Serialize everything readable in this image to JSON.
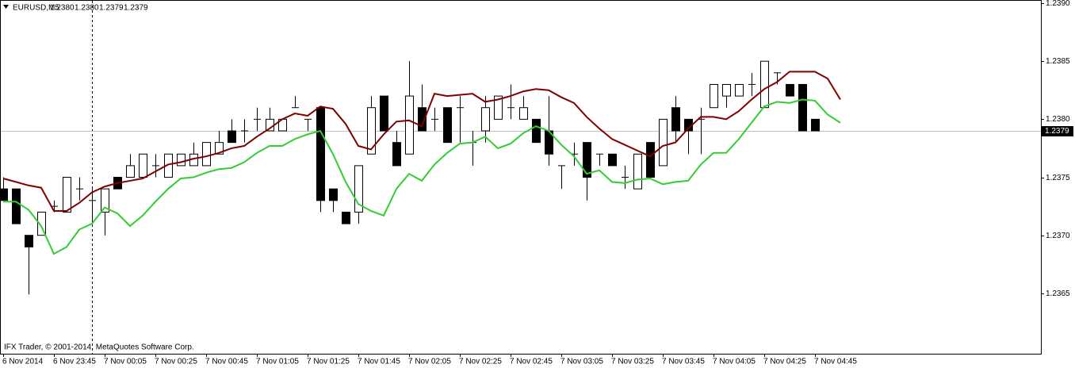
{
  "chart_data": {
    "type": "candlestick",
    "title": "EURUSD,M5",
    "quote": [
      "1.2380",
      "1.2380",
      "1.2379",
      "1.2379"
    ],
    "footer": "IFX Trader, © 2001-2014, MetaQuotes Software Corp.",
    "categories": [
      "6 Nov 2014",
      null,
      null,
      null,
      "6 Nov 23:45",
      null,
      null,
      null,
      "7 Nov 00:05",
      null,
      null,
      null,
      "7 Nov 00:25",
      null,
      null,
      null,
      "7 Nov 00:45",
      null,
      null,
      null,
      "7 Nov 01:05",
      null,
      null,
      null,
      "7 Nov 01:25",
      null,
      null,
      null,
      "7 Nov 01:45",
      null,
      null,
      null,
      "7 Nov 02:05",
      null,
      null,
      null,
      "7 Nov 02:25",
      null,
      null,
      null,
      "7 Nov 02:45",
      null,
      null,
      null,
      "7 Nov 03:05",
      null,
      null,
      null,
      "7 Nov 03:25",
      null,
      null,
      null,
      "7 Nov 03:45",
      null,
      null,
      null,
      "7 Nov 04:05",
      null,
      null,
      null,
      "7 Nov 04:25",
      null,
      null,
      null,
      "7 Nov 04:45",
      null,
      null
    ],
    "candles": {
      "up_color": "#ffffff",
      "down_color": "#000000",
      "open": [
        1.2374,
        1.2374,
        1.237,
        1.237,
        1.23725,
        1.2372,
        1.2374,
        1.2373,
        1.2372,
        1.2375,
        1.2375,
        1.2375,
        1.2376,
        1.2375,
        1.2376,
        1.2376,
        1.2376,
        1.2377,
        1.2379,
        1.2379,
        1.238,
        1.2379,
        1.2379,
        1.2381,
        1.238,
        1.2381,
        1.2374,
        1.2372,
        1.2372,
        1.2377,
        1.2382,
        1.2378,
        1.2377,
        1.2381,
        1.238,
        1.2381,
        1.2381,
        1.2378,
        1.2379,
        1.238,
        1.2381,
        1.238,
        1.238,
        1.2379,
        1.2376,
        1.2377,
        1.2378,
        1.2377,
        1.2377,
        1.2375,
        1.2374,
        1.2378,
        1.2376,
        1.2381,
        1.238,
        1.238,
        1.2381,
        1.2382,
        1.2382,
        1.2383,
        1.2381,
        1.2384,
        1.2383,
        1.2383,
        1.238,
        null,
        null
      ],
      "high": [
        1.2375,
        1.2374,
        1.237,
        1.2372,
        1.2373,
        1.2375,
        1.2375,
        1.2374,
        1.2374,
        1.2375,
        1.2377,
        1.2377,
        1.2377,
        1.2377,
        1.2377,
        1.2378,
        1.2378,
        1.2379,
        1.238,
        1.238,
        1.2381,
        1.2381,
        1.238,
        1.2382,
        1.238,
        1.2381,
        1.2374,
        1.2372,
        1.2376,
        1.2382,
        1.2382,
        1.2379,
        1.2385,
        1.2383,
        1.2381,
        1.2381,
        1.2382,
        1.2379,
        1.2382,
        1.2382,
        1.2383,
        1.2382,
        1.238,
        1.2382,
        1.2376,
        1.2378,
        1.2378,
        1.2377,
        1.2377,
        1.2376,
        1.2377,
        1.2378,
        1.238,
        1.2382,
        1.238,
        1.2381,
        1.2383,
        1.2383,
        1.2383,
        1.2384,
        1.2385,
        1.2384,
        1.2383,
        1.2383,
        1.238,
        null,
        null
      ],
      "low": [
        1.2373,
        1.2371,
        1.23649,
        1.237,
        1.2372,
        1.2372,
        1.2373,
        1.2371,
        1.237,
        1.2374,
        1.2375,
        1.2375,
        1.2375,
        1.2375,
        1.2376,
        1.2376,
        1.2376,
        1.2377,
        1.2378,
        1.2378,
        1.2379,
        1.2379,
        1.2379,
        1.2381,
        1.2379,
        1.2372,
        1.2372,
        1.2371,
        1.2371,
        1.2377,
        1.2379,
        1.2376,
        1.2377,
        1.2379,
        1.2379,
        1.2378,
        1.2378,
        1.2376,
        1.2378,
        1.238,
        1.238,
        1.238,
        1.2378,
        1.2376,
        1.2374,
        1.2376,
        1.2373,
        1.2376,
        1.2376,
        1.2374,
        1.2374,
        1.2375,
        1.2376,
        1.2378,
        1.2377,
        1.2377,
        1.2381,
        1.2381,
        1.2382,
        1.2382,
        1.2381,
        1.2383,
        1.2382,
        1.2379,
        1.2379,
        null,
        null
      ],
      "close": [
        1.2373,
        1.2371,
        1.2369,
        1.2372,
        1.23725,
        1.2375,
        1.2374,
        1.2373,
        1.2374,
        1.2374,
        1.2376,
        1.2377,
        1.2376,
        1.2377,
        1.2377,
        1.2377,
        1.2378,
        1.2378,
        1.2378,
        1.2379,
        1.238,
        1.238,
        1.238,
        1.2381,
        1.238,
        1.2373,
        1.2373,
        1.2371,
        1.2376,
        1.2381,
        1.2379,
        1.2376,
        1.2382,
        1.2379,
        1.238,
        1.2378,
        1.2381,
        1.2378,
        1.2381,
        1.2382,
        1.2381,
        1.2381,
        1.2378,
        1.2377,
        1.2376,
        1.2377,
        1.2375,
        1.2377,
        1.2376,
        1.2375,
        1.2377,
        1.2375,
        1.238,
        1.2379,
        1.2379,
        1.238,
        1.2383,
        1.2383,
        1.2383,
        1.2383,
        1.2385,
        1.2384,
        1.2382,
        1.2379,
        1.2379,
        null,
        null
      ]
    },
    "lines": [
      {
        "color": "#800000",
        "values": [
          1.23749,
          1.23746,
          1.23743,
          1.23741,
          1.23721,
          1.23721,
          1.23728,
          1.23737,
          1.23742,
          1.23745,
          1.23747,
          1.23749,
          1.23755,
          1.23761,
          1.23763,
          1.23766,
          1.23768,
          1.23771,
          1.23775,
          1.23777,
          1.23785,
          1.23792,
          1.238,
          1.23805,
          1.23803,
          1.23811,
          1.23809,
          1.23796,
          1.23777,
          1.23774,
          1.23787,
          1.23798,
          1.23799,
          1.23794,
          1.23822,
          1.2382,
          1.23821,
          1.23822,
          1.23815,
          1.23817,
          1.2382,
          1.23824,
          1.23826,
          1.23825,
          1.23819,
          1.23814,
          1.23802,
          1.23792,
          1.23783,
          1.23778,
          1.23773,
          1.23768,
          1.23777,
          1.2378,
          1.23792,
          1.23802,
          1.23802,
          1.238,
          1.23807,
          1.23817,
          1.23826,
          1.23832,
          1.23841,
          1.23841,
          1.23841,
          1.23835,
          1.23817
        ]
      },
      {
        "color": "#32cd32",
        "values": [
          1.23729,
          1.23729,
          1.23722,
          1.23708,
          1.23684,
          1.2369,
          1.23705,
          1.2371,
          1.23724,
          1.23719,
          1.23708,
          1.23717,
          1.23729,
          1.2374,
          1.23749,
          1.2375,
          1.23754,
          1.23757,
          1.23758,
          1.23763,
          1.23771,
          1.23777,
          1.23777,
          1.23783,
          1.23787,
          1.2379,
          1.2377,
          1.23746,
          1.23727,
          1.23721,
          1.23717,
          1.2374,
          1.23753,
          1.23747,
          1.23761,
          1.23771,
          1.23779,
          1.2378,
          1.23785,
          1.23775,
          1.23779,
          1.23788,
          1.23794,
          1.2379,
          1.23778,
          1.23768,
          1.23753,
          1.23756,
          1.23746,
          1.23745,
          1.23748,
          1.23749,
          1.23744,
          1.23746,
          1.23747,
          1.23761,
          1.23771,
          1.23771,
          1.23783,
          1.23797,
          1.23811,
          1.23815,
          1.23814,
          1.23817,
          1.23816,
          1.23804,
          1.23797
        ]
      }
    ],
    "current_price": 1.2379,
    "ylim": [
      1.23598,
      1.239
    ],
    "yticks": [
      {
        "value": 1.2365,
        "label": "1.2365"
      },
      {
        "value": 1.237,
        "label": "1.2370"
      },
      {
        "value": 1.2375,
        "label": "1.2375"
      },
      {
        "value": 1.238,
        "label": "1.2380"
      },
      {
        "value": 1.2385,
        "label": "1.2385"
      },
      {
        "value": 1.239,
        "label": "1.2390"
      }
    ]
  }
}
